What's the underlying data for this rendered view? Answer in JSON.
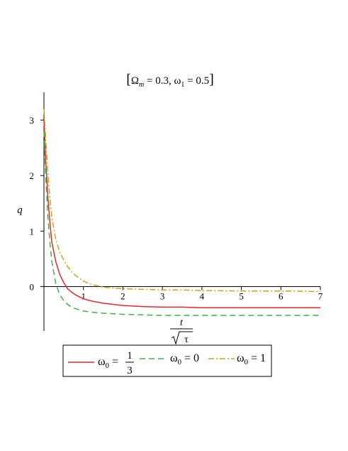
{
  "chart_data": {
    "type": "line",
    "title": {
      "bracket_open": "[",
      "omega_m_symbol": "Ω",
      "omega_m_sub": "m",
      "omega_m_value": " = 0.3, ",
      "omega_1_symbol": "ω",
      "omega_1_sub": "1",
      "omega_1_value": " = 0.5",
      "bracket_close": "]"
    },
    "ylabel": "q",
    "xlabel": {
      "numerator": "t",
      "denominator": "τ"
    },
    "xlim": [
      0,
      7
    ],
    "ylim": [
      -0.8,
      3.5
    ],
    "x_ticks": [
      1,
      2,
      3,
      4,
      5,
      6,
      7
    ],
    "y_ticks": [
      0,
      1,
      2,
      3
    ],
    "x_tick_labels": [
      "1",
      "2",
      "3",
      "4",
      "5",
      "6",
      "7"
    ],
    "y_tick_labels": [
      "0",
      "1",
      "2",
      "3"
    ],
    "grid": false,
    "legend_position": "bottom",
    "series": [
      {
        "legend": {
          "symbol": "ω",
          "sub": "0",
          "eq": " = ",
          "frac_num": "1",
          "frac_den": "3"
        },
        "color": "#e8262a",
        "dash": "solid",
        "x": [
          0,
          0.05,
          0.1,
          0.15,
          0.2,
          0.3,
          0.4,
          0.5,
          0.6,
          0.7,
          0.8,
          1.0,
          1.2,
          1.5,
          2.0,
          2.5,
          3.0,
          3.5,
          4.0,
          5.0,
          6.0,
          7.0
        ],
        "values": [
          3.0,
          2.2,
          1.6,
          1.15,
          0.8,
          0.45,
          0.22,
          0.07,
          -0.04,
          -0.1,
          -0.15,
          -0.22,
          -0.26,
          -0.3,
          -0.34,
          -0.36,
          -0.37,
          -0.37,
          -0.38,
          -0.38,
          -0.38,
          -0.38
        ]
      },
      {
        "legend": {
          "symbol": "ω",
          "sub": "0",
          "eq": " = 0"
        },
        "color": "#3cb44b",
        "dash": "8,5",
        "x": [
          0,
          0.05,
          0.1,
          0.15,
          0.2,
          0.3,
          0.4,
          0.5,
          0.6,
          0.7,
          0.8,
          1.0,
          1.2,
          1.5,
          2.0,
          2.5,
          3.0,
          3.5,
          4.0,
          5.0,
          6.0,
          7.0
        ],
        "values": [
          2.8,
          1.9,
          1.25,
          0.8,
          0.45,
          0.05,
          -0.15,
          -0.25,
          -0.32,
          -0.37,
          -0.4,
          -0.44,
          -0.46,
          -0.48,
          -0.5,
          -0.51,
          -0.52,
          -0.52,
          -0.52,
          -0.52,
          -0.52,
          -0.52
        ]
      },
      {
        "legend": {
          "symbol": "ω",
          "sub": "0",
          "eq": " = 1"
        },
        "color": "#d4a017",
        "dash": "8,3,2,3",
        "x": [
          0,
          0.05,
          0.1,
          0.15,
          0.2,
          0.3,
          0.4,
          0.5,
          0.6,
          0.7,
          0.8,
          1.0,
          1.2,
          1.5,
          2.0,
          2.5,
          3.0,
          3.5,
          4.0,
          5.0,
          6.0,
          7.0
        ],
        "values": [
          3.2,
          2.6,
          2.05,
          1.6,
          1.25,
          0.85,
          0.62,
          0.48,
          0.36,
          0.27,
          0.2,
          0.1,
          0.04,
          -0.01,
          -0.04,
          -0.05,
          -0.06,
          -0.06,
          -0.07,
          -0.08,
          -0.08,
          -0.09
        ]
      }
    ]
  }
}
